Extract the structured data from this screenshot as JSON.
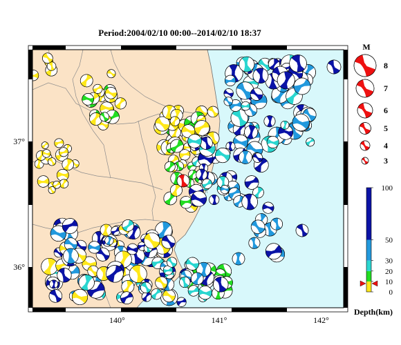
{
  "title": "Period:2004/02/10 00:00--2014/02/10 18:37",
  "axes": {
    "lon_min": 139.17,
    "lon_max": 142.22,
    "lat_min": 35.69,
    "lat_max": 36.69,
    "lon_ticks": [
      {
        "value": 140,
        "label": "140°"
      },
      {
        "value": 141,
        "label": "141°"
      },
      {
        "value": 142,
        "label": "142°"
      }
    ],
    "lat_ticks": [
      {
        "value": 36,
        "label": "36°"
      },
      {
        "value": 37,
        "label": "37°"
      }
    ]
  },
  "colors": {
    "land": "#fbe3c6",
    "sea": "#d8f8fb",
    "boundary": "#8a8a8a",
    "frame": "#000000",
    "mainshock": "#ee1111",
    "depth_0_10": "#ffe81a",
    "depth_10_20": "#22dd22",
    "depth_20_30": "#2ad6d0",
    "depth_30_50": "#2299dd",
    "depth_50_100": "#0b13a6"
  },
  "magnitude_legend": {
    "title": "M",
    "items": [
      {
        "label": "8",
        "m": 8
      },
      {
        "label": "7",
        "m": 7
      },
      {
        "label": "6",
        "m": 6
      },
      {
        "label": "5",
        "m": 5
      },
      {
        "label": "4",
        "m": 4
      },
      {
        "label": "3",
        "m": 3
      }
    ]
  },
  "depth_scale": {
    "title": "Depth(km)",
    "ticks": [
      {
        "label": "100",
        "value": 100
      },
      {
        "label": "50",
        "value": 50
      },
      {
        "label": "30",
        "value": 30
      },
      {
        "label": "20",
        "value": 20
      },
      {
        "label": "10",
        "value": 10
      },
      {
        "label": "0",
        "value": 0
      }
    ],
    "current_depth_marker_km": 8
  },
  "mainshock": {
    "lon": 140.6,
    "lat": 36.73,
    "depth": 8,
    "mag": 5.0
  }
}
